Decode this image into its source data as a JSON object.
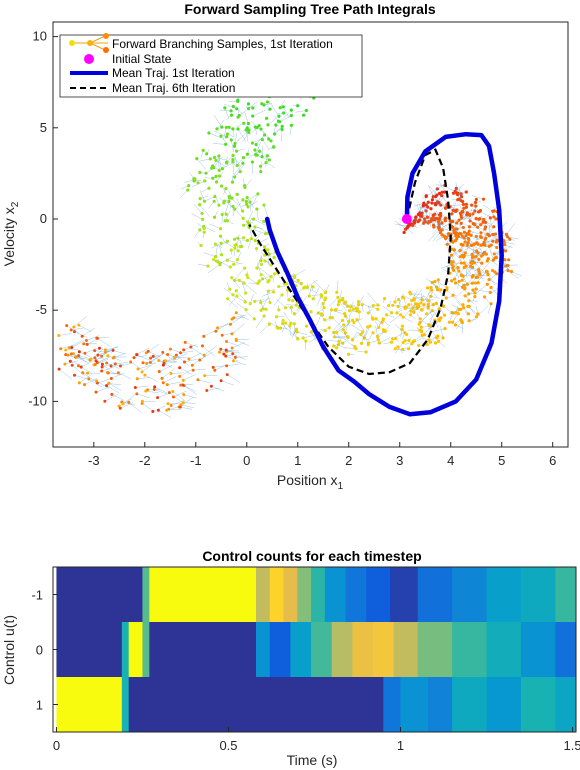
{
  "chart_data": [
    {
      "type": "scatter",
      "title": "Forward Sampling Tree Path Integrals",
      "xlabel": "Position x",
      "xlabel_sub": "1",
      "ylabel": "Velocity x",
      "ylabel_sub": "2",
      "xlim": [
        -3.8,
        6.3
      ],
      "ylim": [
        -12.5,
        10.8
      ],
      "xticks": [
        -3,
        -2,
        -1,
        0,
        1,
        2,
        3,
        4,
        5,
        6
      ],
      "yticks": [
        -10,
        -5,
        0,
        5,
        10
      ],
      "legend_position": "top-left",
      "legend": [
        {
          "label": "Forward Branching Samples, 1st Iteration",
          "style": "tree-markers"
        },
        {
          "label": "Initial State",
          "style": "magenta-dot"
        },
        {
          "label": "Mean Traj. 1st Iteration",
          "style": "blue-thick-line"
        },
        {
          "label": "Mean Traj. 6th Iteration",
          "style": "black-dashed-line"
        }
      ],
      "colors": {
        "mean_1st": "#0000dd",
        "mean_6th": "#000000",
        "initial_state": "#ff00ff",
        "tree_edges": "#5b9bd5"
      },
      "initial_state": {
        "x": 3.14,
        "y": 0.0
      },
      "series": [
        {
          "name": "Mean Traj. 1st Iteration",
          "x": [
            3.14,
            3.15,
            3.25,
            3.5,
            3.9,
            4.3,
            4.6,
            4.75,
            4.85,
            4.95,
            5.0,
            4.95,
            4.8,
            4.5,
            4.1,
            3.6,
            3.2,
            2.8,
            2.4,
            2.1,
            1.8,
            1.5,
            1.25,
            1.0,
            0.8,
            0.6,
            0.45,
            0.4
          ],
          "y": [
            0.0,
            1.2,
            2.5,
            3.7,
            4.5,
            4.65,
            4.6,
            4.0,
            2.5,
            0.5,
            -2.0,
            -4.5,
            -6.8,
            -8.8,
            -10.0,
            -10.6,
            -10.7,
            -10.3,
            -9.6,
            -8.9,
            -8.3,
            -7.0,
            -5.6,
            -4.3,
            -3.0,
            -1.8,
            -0.6,
            0.0
          ]
        },
        {
          "name": "Mean Traj. 6th Iteration",
          "x": [
            3.14,
            3.3,
            3.5,
            3.7,
            3.85,
            3.95,
            4.0,
            3.95,
            3.8,
            3.55,
            3.2,
            2.8,
            2.4,
            2.0,
            1.6,
            1.2,
            0.8,
            0.5,
            0.25,
            0.05
          ],
          "y": [
            0.0,
            2.0,
            3.5,
            3.8,
            2.8,
            1.0,
            -1.0,
            -3.0,
            -4.9,
            -6.6,
            -7.9,
            -8.4,
            -8.5,
            -8.1,
            -7.0,
            -5.4,
            -3.7,
            -2.4,
            -1.3,
            -0.3
          ]
        }
      ]
    },
    {
      "type": "heatmap",
      "title": "Control counts for each timestep",
      "xlabel": "Time (s)",
      "ylabel": "Control u(t)",
      "xlim": [
        -0.01,
        1.51
      ],
      "xticks": [
        0,
        0.5,
        1,
        1.5
      ],
      "xtick_labels": [
        "0",
        "0.5",
        "1",
        "1.5"
      ],
      "rows": [
        "-1",
        "0",
        "1"
      ],
      "colormap": "parula",
      "rows_data": [
        {
          "label": "-1",
          "segments": [
            [
              0,
              0.25,
              0.02
            ],
            [
              0.25,
              0.27,
              0.55
            ],
            [
              0.27,
              0.58,
              1.0
            ],
            [
              0.58,
              0.62,
              0.72
            ],
            [
              0.62,
              0.66,
              0.9
            ],
            [
              0.66,
              0.7,
              0.8
            ],
            [
              0.7,
              0.74,
              0.62
            ],
            [
              0.74,
              0.78,
              0.48
            ],
            [
              0.78,
              0.84,
              0.3
            ],
            [
              0.84,
              0.9,
              0.2
            ],
            [
              0.9,
              0.97,
              0.12
            ],
            [
              0.97,
              1.05,
              0.05
            ],
            [
              1.05,
              1.15,
              0.18
            ],
            [
              1.15,
              1.25,
              0.25
            ],
            [
              1.25,
              1.35,
              0.35
            ],
            [
              1.35,
              1.45,
              0.4
            ],
            [
              1.45,
              1.51,
              0.5
            ]
          ]
        },
        {
          "label": "0",
          "segments": [
            [
              0,
              0.19,
              0.02
            ],
            [
              0.19,
              0.21,
              0.45
            ],
            [
              0.21,
              0.25,
              1.0
            ],
            [
              0.25,
              0.27,
              0.55
            ],
            [
              0.27,
              0.58,
              0.02
            ],
            [
              0.58,
              0.62,
              0.3
            ],
            [
              0.62,
              0.68,
              0.12
            ],
            [
              0.68,
              0.74,
              0.35
            ],
            [
              0.74,
              0.8,
              0.52
            ],
            [
              0.8,
              0.86,
              0.7
            ],
            [
              0.86,
              0.92,
              0.82
            ],
            [
              0.92,
              0.98,
              0.85
            ],
            [
              0.98,
              1.05,
              0.72
            ],
            [
              1.05,
              1.15,
              0.6
            ],
            [
              1.15,
              1.25,
              0.5
            ],
            [
              1.25,
              1.35,
              0.42
            ],
            [
              1.35,
              1.45,
              0.3
            ],
            [
              1.45,
              1.51,
              0.18
            ]
          ]
        },
        {
          "label": "1",
          "segments": [
            [
              0,
              0.19,
              1.0
            ],
            [
              0.19,
              0.21,
              0.45
            ],
            [
              0.21,
              0.95,
              0.02
            ],
            [
              0.95,
              1.0,
              0.2
            ],
            [
              1.0,
              1.08,
              0.3
            ],
            [
              1.08,
              1.15,
              0.24
            ],
            [
              1.15,
              1.25,
              0.4
            ],
            [
              1.25,
              1.35,
              0.32
            ],
            [
              1.35,
              1.45,
              0.45
            ],
            [
              1.45,
              1.51,
              0.38
            ]
          ]
        }
      ]
    }
  ]
}
